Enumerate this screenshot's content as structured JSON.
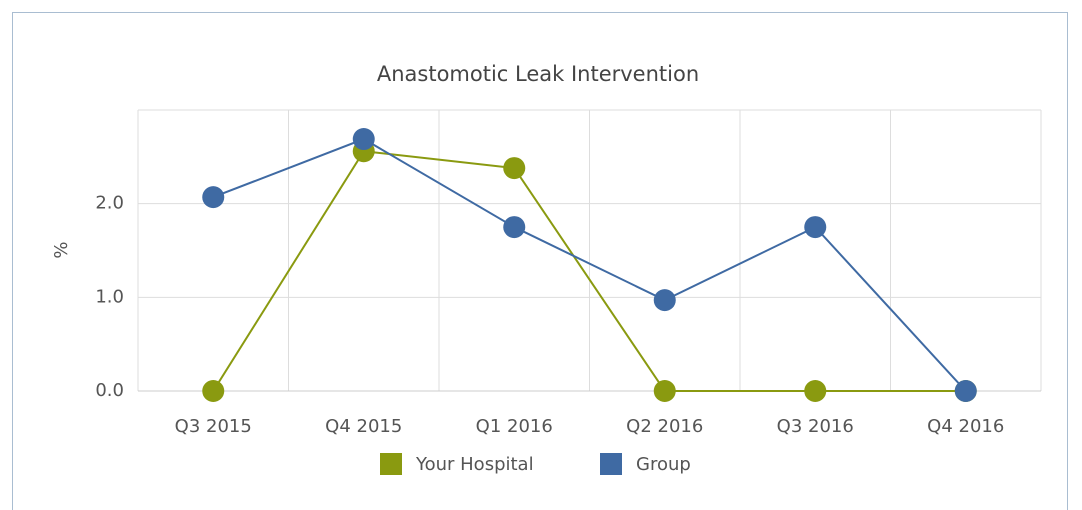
{
  "chart_data": {
    "type": "line",
    "title": "Anastomotic Leak Intervention",
    "y_label": "%",
    "categories": [
      "Q3 2015",
      "Q4 2015",
      "Q1 2016",
      "Q2 2016",
      "Q3 2016",
      "Q4 2016"
    ],
    "series": [
      {
        "name": "Your Hospital",
        "color": "#8a9a10",
        "values": [
          0,
          2.56,
          2.38,
          0,
          0,
          0
        ]
      },
      {
        "name": "Group",
        "color": "#3f6aa3",
        "values": [
          2.07,
          2.69,
          1.75,
          0.97,
          1.75,
          0
        ]
      }
    ],
    "ylim": [
      0,
      3
    ],
    "yticks": [
      {
        "value": 0,
        "label": "0.0"
      },
      {
        "value": 1,
        "label": "1.0"
      },
      {
        "value": 2,
        "label": "2.0"
      }
    ],
    "grid": true,
    "legend": "bottom"
  }
}
